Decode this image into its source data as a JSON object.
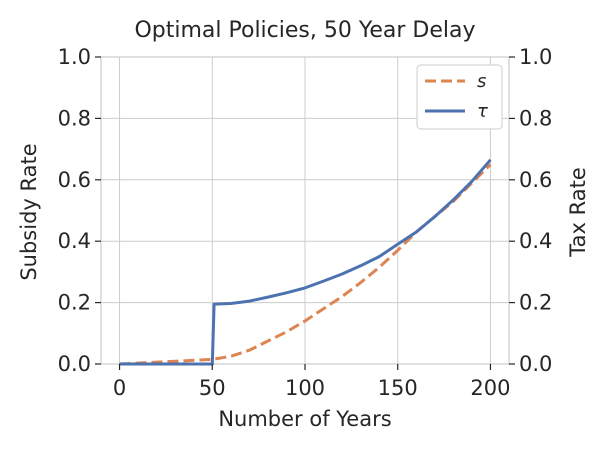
{
  "chart_data": {
    "type": "line",
    "title": "Optimal Policies, 50 Year Delay",
    "xlabel": "Number of Years",
    "ylabel": "Subsidy Rate",
    "ylabel_right": "Tax Rate",
    "xlim": [
      -10,
      210
    ],
    "ylim": [
      0,
      1
    ],
    "xticks": [
      "0",
      "50",
      "100",
      "150",
      "200"
    ],
    "yticks": [
      "0.0",
      "0.2",
      "0.4",
      "0.6",
      "0.8",
      "1.0"
    ],
    "yticks_right": [
      "0.0",
      "0.2",
      "0.4",
      "0.6",
      "0.8",
      "1.0"
    ],
    "grid": true,
    "legend_position": "top-right",
    "series": [
      {
        "name": "s",
        "style": "dashed",
        "color": "#dd8452",
        "x": [
          0,
          50,
          60,
          70,
          80,
          90,
          100,
          110,
          120,
          130,
          140,
          150,
          160,
          170,
          180,
          190,
          200
        ],
        "y": [
          0,
          0.015,
          0.025,
          0.045,
          0.075,
          0.105,
          0.14,
          0.18,
          0.22,
          0.265,
          0.315,
          0.37,
          0.43,
          0.48,
          0.53,
          0.59,
          0.65
        ]
      },
      {
        "name": "τ",
        "style": "solid",
        "color": "#4c72b0",
        "x": [
          0,
          50,
          51,
          60,
          70,
          80,
          90,
          100,
          110,
          120,
          130,
          140,
          150,
          160,
          170,
          180,
          190,
          200
        ],
        "y": [
          0,
          0,
          0.195,
          0.197,
          0.205,
          0.218,
          0.232,
          0.248,
          0.27,
          0.293,
          0.32,
          0.35,
          0.39,
          0.43,
          0.48,
          0.535,
          0.595,
          0.665
        ]
      }
    ]
  }
}
